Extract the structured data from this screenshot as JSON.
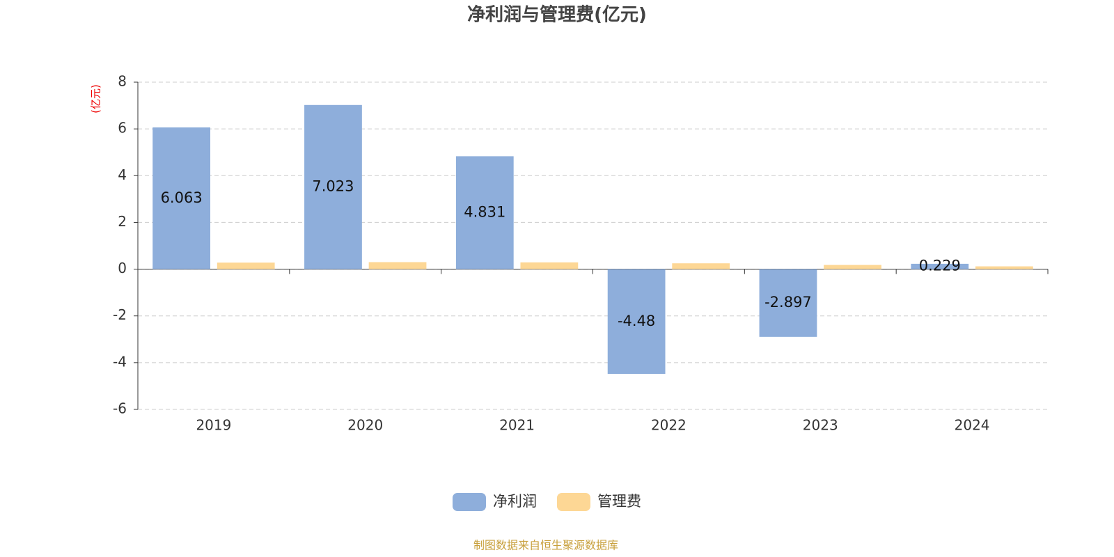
{
  "chart_data": {
    "type": "bar",
    "title": "净利润与管理费(亿元)",
    "y_label": "(亿元)",
    "categories": [
      "2019",
      "2020",
      "2021",
      "2022",
      "2023",
      "2024"
    ],
    "series": [
      {
        "name": "净利润",
        "color": "#8eaedb",
        "show_labels": true,
        "values": [
          6.063,
          7.023,
          4.831,
          -4.48,
          -2.897,
          0.229
        ]
      },
      {
        "name": "管理费",
        "color": "#fdd795",
        "show_labels": false,
        "values": [
          0.28,
          0.3,
          0.29,
          0.25,
          0.18,
          0.12
        ]
      }
    ],
    "ylim": [
      -6,
      8
    ],
    "yticks": [
      -6,
      -4,
      -2,
      0,
      2,
      4,
      6,
      8
    ],
    "grid": true,
    "legend": "bottom",
    "source": "制图数据来自恒生聚源数据库"
  }
}
